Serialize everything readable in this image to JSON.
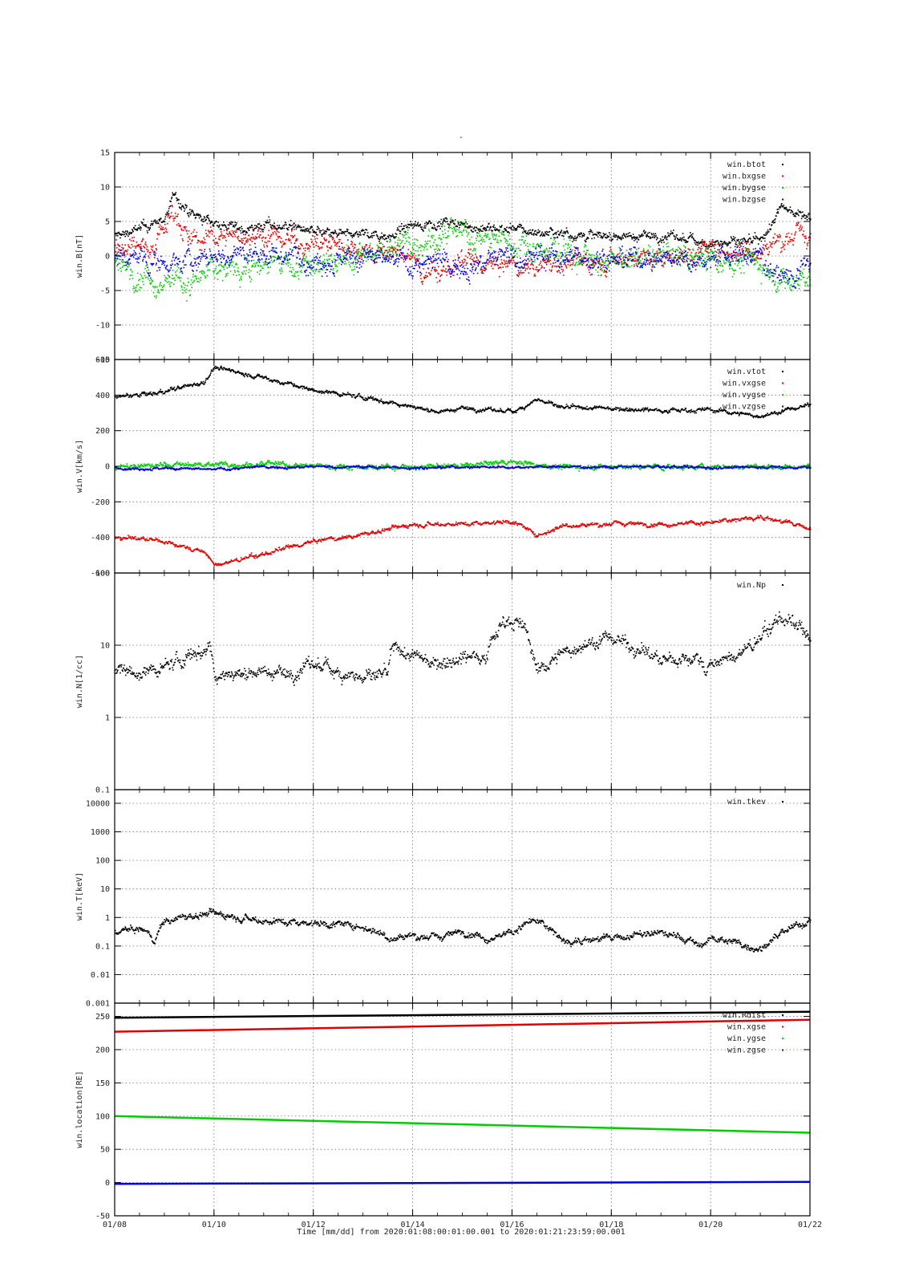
{
  "figure": {
    "title": "-",
    "x_ticks": [
      "01/08",
      "01/10",
      "01/12",
      "01/14",
      "01/16",
      "01/18",
      "01/20",
      "01/22"
    ],
    "x_footer": "Time [mm/dd]  from 2020:01:08:00:01:00.001  to  2020:01:21:23:59:00.001"
  },
  "colors": {
    "black": "#000000",
    "red": "#e00000",
    "green": "#00cc00",
    "blue": "#0000dd"
  },
  "chart_data": [
    {
      "type": "scatter",
      "ylabel": "win.B[nT]",
      "xlim": [
        0,
        14
      ],
      "ylim": [
        -15,
        15
      ],
      "yticks": [
        -15,
        -10,
        -5,
        0,
        5,
        10,
        15
      ],
      "log": false,
      "legend_position": "top-right",
      "series": [
        {
          "name": "win.btot",
          "color": "black",
          "kind": "noisy",
          "anchors": [
            [
              0,
              3
            ],
            [
              0.5,
              4
            ],
            [
              1,
              5.5
            ],
            [
              1.2,
              9
            ],
            [
              1.5,
              6
            ],
            [
              2,
              5
            ],
            [
              2.5,
              4
            ],
            [
              3,
              4.5
            ],
            [
              3.5,
              4.5
            ],
            [
              4,
              3.5
            ],
            [
              4.5,
              3
            ],
            [
              5,
              3.5
            ],
            [
              5.5,
              3
            ],
            [
              6,
              4.5
            ],
            [
              6.5,
              5
            ],
            [
              7,
              4.5
            ],
            [
              7.5,
              4
            ],
            [
              8,
              4
            ],
            [
              8.5,
              3.5
            ],
            [
              9,
              3.5
            ],
            [
              9.5,
              3
            ],
            [
              10,
              3
            ],
            [
              11,
              3
            ],
            [
              12,
              2
            ],
            [
              13,
              2
            ],
            [
              13.4,
              7
            ],
            [
              14,
              6
            ]
          ],
          "noise": 0.6
        },
        {
          "name": "win.bxgse",
          "color": "red",
          "kind": "noisy",
          "anchors": [
            [
              0,
              1.5
            ],
            [
              0.8,
              2
            ],
            [
              1.2,
              7
            ],
            [
              1.5,
              2
            ],
            [
              2,
              3
            ],
            [
              3,
              3
            ],
            [
              4,
              2
            ],
            [
              5,
              1
            ],
            [
              6,
              0
            ],
            [
              6.2,
              -3
            ],
            [
              7,
              -1
            ],
            [
              8,
              -1.5
            ],
            [
              9,
              -1
            ],
            [
              10,
              0
            ],
            [
              11,
              0
            ],
            [
              12,
              1
            ],
            [
              13,
              1
            ],
            [
              13.5,
              3
            ],
            [
              14,
              3
            ]
          ],
          "noise": 1.2
        },
        {
          "name": "win.bygse",
          "color": "green",
          "kind": "noisy",
          "anchors": [
            [
              0,
              -1
            ],
            [
              0.8,
              -3
            ],
            [
              1.5,
              -4
            ],
            [
              2,
              -2
            ],
            [
              3,
              -1
            ],
            [
              4,
              -1.5
            ],
            [
              5,
              0
            ],
            [
              6,
              2.5
            ],
            [
              7,
              3
            ],
            [
              8,
              2
            ],
            [
              9,
              1
            ],
            [
              10,
              -1
            ],
            [
              11,
              0
            ],
            [
              12,
              0
            ],
            [
              13,
              -1
            ],
            [
              13.5,
              -4
            ],
            [
              14,
              -3
            ]
          ],
          "noise": 1.5
        },
        {
          "name": "win.bzgse",
          "color": "blue",
          "kind": "noisy",
          "anchors": [
            [
              0,
              0
            ],
            [
              1,
              -1
            ],
            [
              2,
              0
            ],
            [
              3,
              0.5
            ],
            [
              4,
              0
            ],
            [
              5,
              -0.5
            ],
            [
              6,
              -1
            ],
            [
              7,
              -1
            ],
            [
              8,
              0
            ],
            [
              9,
              0
            ],
            [
              10,
              0
            ],
            [
              11,
              0
            ],
            [
              12,
              0
            ],
            [
              13,
              0
            ],
            [
              13.5,
              -3
            ],
            [
              14,
              -1
            ]
          ],
          "noise": 1.3
        }
      ]
    },
    {
      "type": "scatter",
      "ylabel": "win.V[km/s]",
      "xlim": [
        0,
        14
      ],
      "ylim": [
        -600,
        600
      ],
      "yticks": [
        -600,
        -400,
        -200,
        0,
        200,
        400,
        600
      ],
      "log": false,
      "legend_position": "top-right",
      "series": [
        {
          "name": "win.vtot",
          "color": "black",
          "kind": "noisy",
          "anchors": [
            [
              0,
              390
            ],
            [
              1,
              420
            ],
            [
              1.8,
              480
            ],
            [
              2,
              560
            ],
            [
              3,
              500
            ],
            [
              4,
              430
            ],
            [
              5,
              390
            ],
            [
              6,
              340
            ],
            [
              6.5,
              310
            ],
            [
              7,
              330
            ],
            [
              8,
              310
            ],
            [
              8.5,
              380
            ],
            [
              9,
              330
            ],
            [
              10,
              330
            ],
            [
              11,
              320
            ],
            [
              12,
              320
            ],
            [
              13,
              285
            ],
            [
              14,
              350
            ]
          ],
          "noise": 10
        },
        {
          "name": "win.vxgse",
          "color": "red",
          "kind": "noisy",
          "anchors": [
            [
              0,
              -390
            ],
            [
              1,
              -420
            ],
            [
              1.8,
              -480
            ],
            [
              2,
              -555
            ],
            [
              3,
              -490
            ],
            [
              4,
              -420
            ],
            [
              5,
              -380
            ],
            [
              6,
              -320
            ],
            [
              7,
              -320
            ],
            [
              8,
              -305
            ],
            [
              8.5,
              -385
            ],
            [
              9,
              -330
            ],
            [
              10,
              -320
            ],
            [
              11,
              -320
            ],
            [
              12,
              -315
            ],
            [
              13,
              -280
            ],
            [
              14,
              -345
            ]
          ],
          "noise": 10
        },
        {
          "name": "win.vygse",
          "color": "green",
          "kind": "noisy",
          "anchors": [
            [
              0,
              -5
            ],
            [
              1,
              10
            ],
            [
              2,
              15
            ],
            [
              3,
              15
            ],
            [
              4,
              5
            ],
            [
              5,
              0
            ],
            [
              6,
              0
            ],
            [
              7,
              5
            ],
            [
              8,
              30
            ],
            [
              9,
              0
            ],
            [
              10,
              0
            ],
            [
              11,
              0
            ],
            [
              12,
              0
            ],
            [
              13,
              0
            ],
            [
              14,
              0
            ]
          ],
          "noise": 12
        },
        {
          "name": "win.vzgse",
          "color": "blue",
          "kind": "noisy",
          "anchors": [
            [
              0,
              -5
            ],
            [
              1,
              -10
            ],
            [
              2,
              -15
            ],
            [
              3,
              0
            ],
            [
              4,
              0
            ],
            [
              5,
              0
            ],
            [
              6,
              -5
            ],
            [
              7,
              0
            ],
            [
              8,
              0
            ],
            [
              9,
              0
            ],
            [
              10,
              0
            ],
            [
              11,
              0
            ],
            [
              12,
              -5
            ],
            [
              13,
              0
            ],
            [
              14,
              -5
            ]
          ],
          "noise": 6
        }
      ]
    },
    {
      "type": "scatter",
      "ylabel": "win.N[1/cc]",
      "xlim": [
        0,
        14
      ],
      "ylim": [
        0.1,
        100
      ],
      "yticks": [
        0.1,
        1,
        10,
        100
      ],
      "log": true,
      "legend_position": "top-right",
      "series": [
        {
          "name": "win.Np",
          "color": "black",
          "kind": "noisy-log",
          "anchors": [
            [
              0,
              5
            ],
            [
              0.5,
              4
            ],
            [
              1,
              5
            ],
            [
              1.5,
              7
            ],
            [
              1.9,
              10
            ],
            [
              2,
              4
            ],
            [
              3,
              4.5
            ],
            [
              3.5,
              4
            ],
            [
              4,
              5.5
            ],
            [
              5,
              3.5
            ],
            [
              5.5,
              4
            ],
            [
              5.6,
              9
            ],
            [
              6,
              7
            ],
            [
              6.5,
              6
            ],
            [
              7,
              7
            ],
            [
              7.5,
              8
            ],
            [
              7.9,
              25
            ],
            [
              8.2,
              18
            ],
            [
              8.5,
              4
            ],
            [
              9,
              8
            ],
            [
              10,
              13
            ],
            [
              11,
              6
            ],
            [
              11.7,
              7
            ],
            [
              11.9,
              5
            ],
            [
              12.5,
              7
            ],
            [
              13,
              12
            ],
            [
              13.4,
              25
            ],
            [
              14,
              11
            ]
          ],
          "noise": 0.08
        }
      ]
    },
    {
      "type": "scatter",
      "ylabel": "win.T[keV]",
      "xlim": [
        0,
        14
      ],
      "ylim": [
        0.001,
        30000
      ],
      "yticks": [
        0.001,
        0.01,
        0.1,
        1,
        10,
        100,
        1000,
        10000
      ],
      "log": true,
      "legend_position": "top-right",
      "series": [
        {
          "name": "win.tkev",
          "color": "black",
          "kind": "noisy-log",
          "anchors": [
            [
              0,
              0.35
            ],
            [
              0.5,
              0.4
            ],
            [
              0.8,
              0.15
            ],
            [
              1,
              0.8
            ],
            [
              2,
              1.5
            ],
            [
              3,
              0.8
            ],
            [
              4,
              0.7
            ],
            [
              5,
              0.5
            ],
            [
              5.5,
              0.2
            ],
            [
              6,
              0.25
            ],
            [
              6.5,
              0.2
            ],
            [
              7,
              0.35
            ],
            [
              7.5,
              0.2
            ],
            [
              8,
              0.3
            ],
            [
              8.4,
              0.8
            ],
            [
              9,
              0.15
            ],
            [
              10,
              0.2
            ],
            [
              11,
              0.3
            ],
            [
              11.8,
              0.1
            ],
            [
              12,
              0.2
            ],
            [
              13,
              0.08
            ],
            [
              13.5,
              0.3
            ],
            [
              14,
              0.8
            ]
          ],
          "noise": 0.1
        }
      ]
    },
    {
      "type": "line",
      "ylabel": "win.location[RE]",
      "xlim": [
        0,
        14
      ],
      "ylim": [
        -50,
        270
      ],
      "yticks": [
        -50,
        0,
        50,
        100,
        150,
        200,
        250
      ],
      "log": false,
      "legend_position": "top-right",
      "series": [
        {
          "name": "win.Rdist",
          "color": "black",
          "kind": "line",
          "anchors": [
            [
              0,
              248
            ],
            [
              14,
              257
            ]
          ],
          "noise": 0
        },
        {
          "name": "win.xgse",
          "color": "red",
          "kind": "line",
          "anchors": [
            [
              0,
              227
            ],
            [
              14,
              245
            ]
          ],
          "noise": 0
        },
        {
          "name": "win.ygse",
          "color": "green",
          "kind": "line",
          "anchors": [
            [
              0,
              100
            ],
            [
              14,
              75
            ]
          ],
          "noise": 0
        },
        {
          "name": "win.zgse",
          "color": "blue",
          "kind": "line",
          "anchors": [
            [
              0,
              -2
            ],
            [
              14,
              1
            ]
          ],
          "noise": 0
        }
      ]
    }
  ]
}
